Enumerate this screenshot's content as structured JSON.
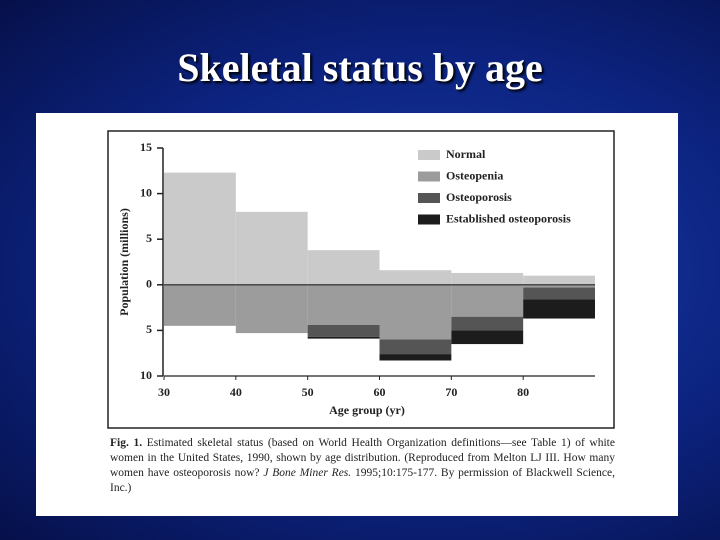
{
  "slide_title": "Skeletal status by age",
  "chart_data": {
    "type": "histogram",
    "ylabel": "Population (millions)",
    "xlabel": "Age group (yr)",
    "bins": [
      30,
      40,
      50,
      60,
      70,
      80,
      90
    ],
    "xlim": [
      30,
      90
    ],
    "xticks": [
      30,
      40,
      50,
      60,
      70,
      80
    ],
    "ylim": [
      -10,
      15
    ],
    "yticks": [
      15,
      10,
      5,
      0,
      {
        "value": -5,
        "label": "5"
      },
      {
        "value": -10,
        "label": "10"
      }
    ],
    "legend": "upper right",
    "series": [
      {
        "name": "Normal",
        "color": "#cacaca",
        "values": [
          12.3,
          8,
          3.8,
          1.6,
          1.3,
          1.0
        ]
      },
      {
        "name": "Osteopenia",
        "color": "#9c9c9c",
        "values": [
          -4.5,
          -5.3,
          -4.4,
          -6.0,
          -3.5,
          -0.3
        ]
      },
      {
        "name": "Osteoporosis",
        "color": "#555555",
        "values": [
          0,
          0,
          -1.3,
          -1.6,
          -1.5,
          -1.3
        ]
      },
      {
        "name": "Established osteoporosis",
        "color": "#1c1c1c",
        "values": [
          0,
          0,
          -0.2,
          -0.7,
          -1.5,
          -2.1
        ]
      }
    ]
  },
  "caption": {
    "label": "Fig. 1.",
    "text": "Estimated skeletal status (based on World Health Organization definitions—see Table 1) of white women in the United States, 1990, shown by age distribution. (Reproduced from Melton LJ III. How many women have osteoporosis now?",
    "journal": "J Bone Miner Res.",
    "text_end": "1995;10:175-177. By permission of Blackwell Science, Inc.)"
  }
}
